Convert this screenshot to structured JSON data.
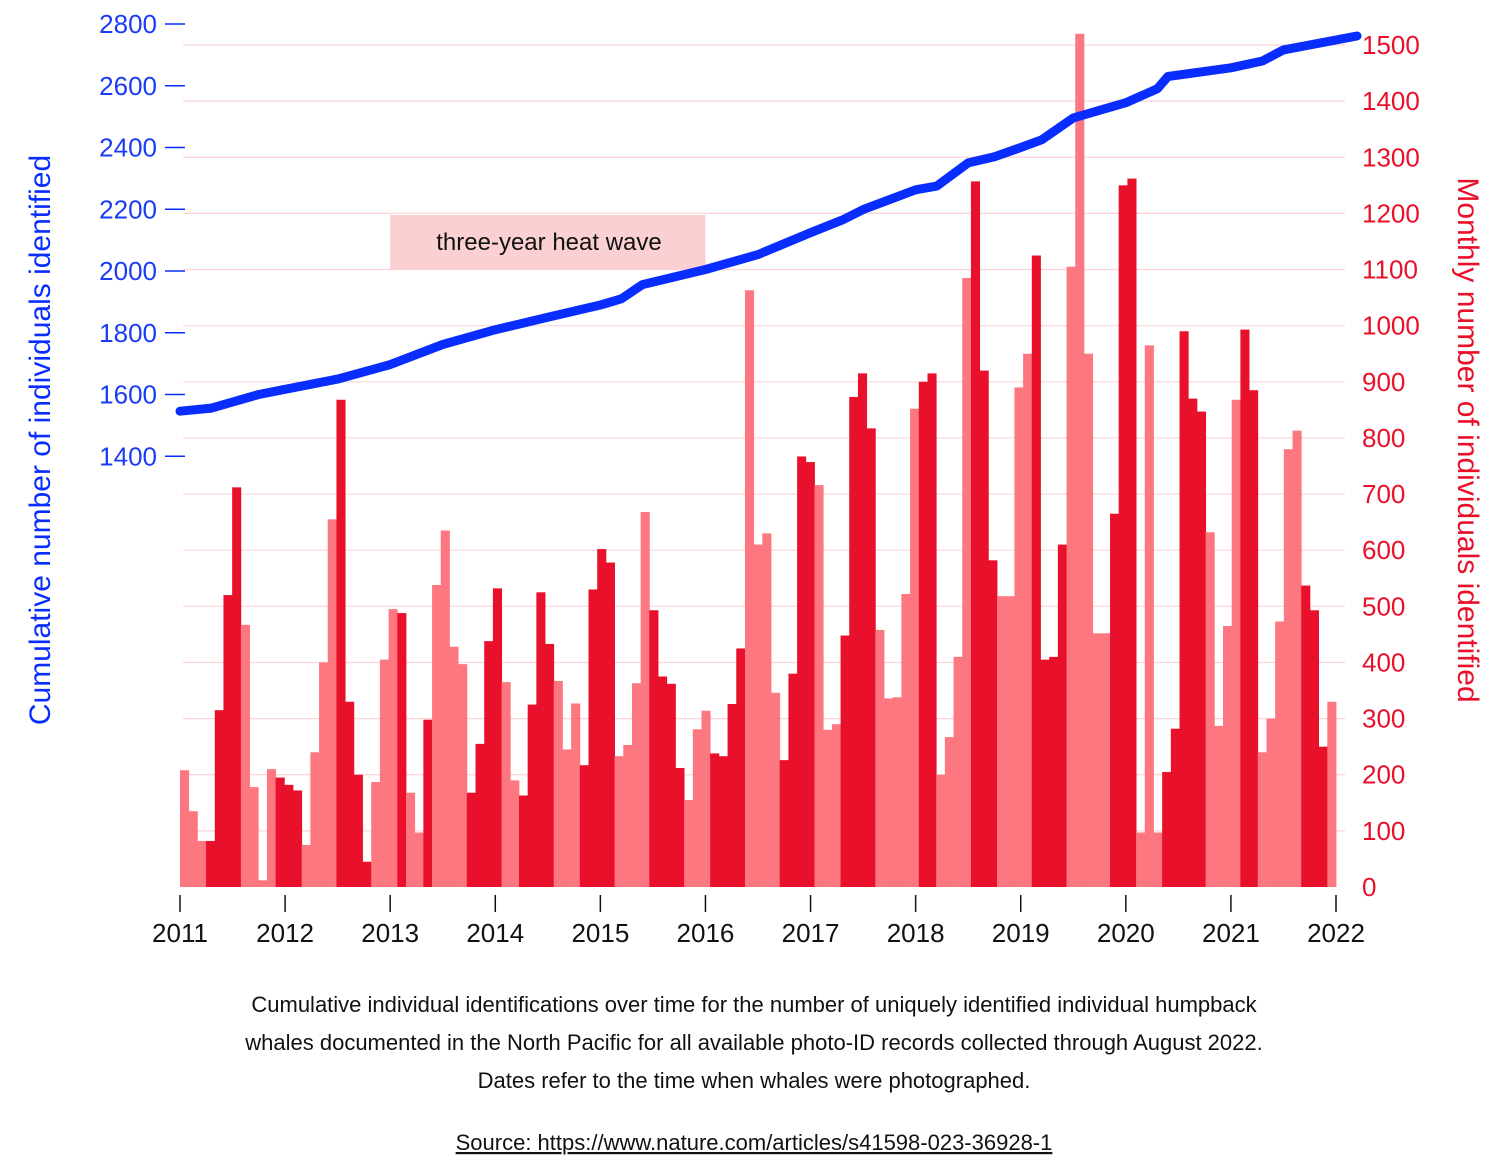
{
  "chart_data": {
    "type": "bar+line",
    "caption": [
      "Cumulative individual identifications over time for the number of uniquely identified individual humpback",
      "whales documented in the North Pacific for all available photo-ID records collected through August 2022.",
      "Dates refer to the time when whales were photographed."
    ],
    "source": "Source: https://www.nature.com/articles/s41598-023-36928-1",
    "annotation": "three-year heat wave",
    "annotation_range": [
      2013.0,
      2016.0
    ],
    "left_axis": {
      "label": "Cumulative number of individuals identified",
      "ticks": [
        1400,
        1600,
        1800,
        2000,
        2200,
        2400,
        2600,
        2800
      ],
      "range": [
        0,
        2800
      ]
    },
    "right_axis": {
      "label": "Monthly number of individuals identified",
      "ticks": [
        0,
        100,
        200,
        300,
        400,
        500,
        600,
        700,
        800,
        900,
        1000,
        1100,
        1200,
        1300,
        1400,
        1500
      ],
      "range": [
        0,
        1500
      ]
    },
    "x_ticks": [
      "2011",
      "2012",
      "2013",
      "2014",
      "2015",
      "2016",
      "2017",
      "2018",
      "2019",
      "2020",
      "2021",
      "2022"
    ],
    "x_range": [
      2011,
      2022
    ],
    "colors": {
      "dark": "#e8102a",
      "light": "#fc7780",
      "line": "#0a2dff",
      "grid": "#fbd5d8",
      "band": "#fbd0d3"
    },
    "monthly_bars": {
      "values": [
        208,
        135,
        82,
        82,
        315,
        520,
        712,
        467,
        178,
        12,
        210,
        195,
        182,
        172,
        75,
        240,
        400,
        655,
        868,
        330,
        200,
        45,
        187,
        405,
        495,
        488,
        168,
        97,
        298,
        538,
        635,
        428,
        397,
        168,
        255,
        438,
        532,
        365,
        190,
        163,
        325,
        525,
        433,
        367,
        245,
        327,
        217,
        530,
        602,
        578,
        233,
        253,
        363,
        668,
        493,
        375,
        362,
        212,
        155,
        281,
        314,
        238,
        233,
        326,
        425,
        1063,
        610,
        630,
        346,
        226,
        380,
        767,
        757,
        716,
        280,
        290,
        448,
        873,
        915,
        817,
        458,
        336,
        338,
        522,
        852,
        900,
        915,
        200,
        267,
        410,
        1085,
        1257,
        920,
        582,
        518,
        518,
        890,
        950,
        1125,
        405,
        410,
        610,
        1105,
        1520,
        950,
        452,
        452,
        665,
        1250,
        1262,
        97,
        965,
        97,
        205,
        282,
        990,
        870,
        847,
        632,
        287,
        465,
        868,
        993,
        885,
        240,
        300,
        473,
        780,
        813,
        537,
        493,
        250,
        330
      ],
      "shade": "LLLDDDDLLLLDDDLLLLDDDDLLLDLLDLLLLDDDDLLDDDDLLLDDDDLLLLDDDDLLLDDDDLLLLDDDDLLLDDDDLLLLLDDLLLLDDDLLLLDDDDLLLLLDDDLLLDDDDDLLLLDDLLLLLDDDL"
    },
    "cumulative_line": {
      "x": [
        2011.0,
        2011.3,
        2011.75,
        2012.0,
        2012.5,
        2013.0,
        2013.5,
        2014.0,
        2014.5,
        2015.0,
        2015.2,
        2015.4,
        2016.0,
        2016.5,
        2017.0,
        2017.3,
        2017.5,
        2018.0,
        2018.2,
        2018.5,
        2018.75,
        2019.0,
        2019.2,
        2019.5,
        2020.0,
        2020.3,
        2020.4,
        2021.0,
        2021.3,
        2021.5,
        2022.2
      ],
      "y": [
        1546,
        1556,
        1600,
        1617,
        1650,
        1697,
        1762,
        1810,
        1850,
        1890,
        1910,
        1956,
        2005,
        2053,
        2124,
        2165,
        2199,
        2263,
        2275,
        2350,
        2370,
        2400,
        2425,
        2496,
        2545,
        2590,
        2630,
        2658,
        2680,
        2716,
        2761
      ]
    }
  }
}
